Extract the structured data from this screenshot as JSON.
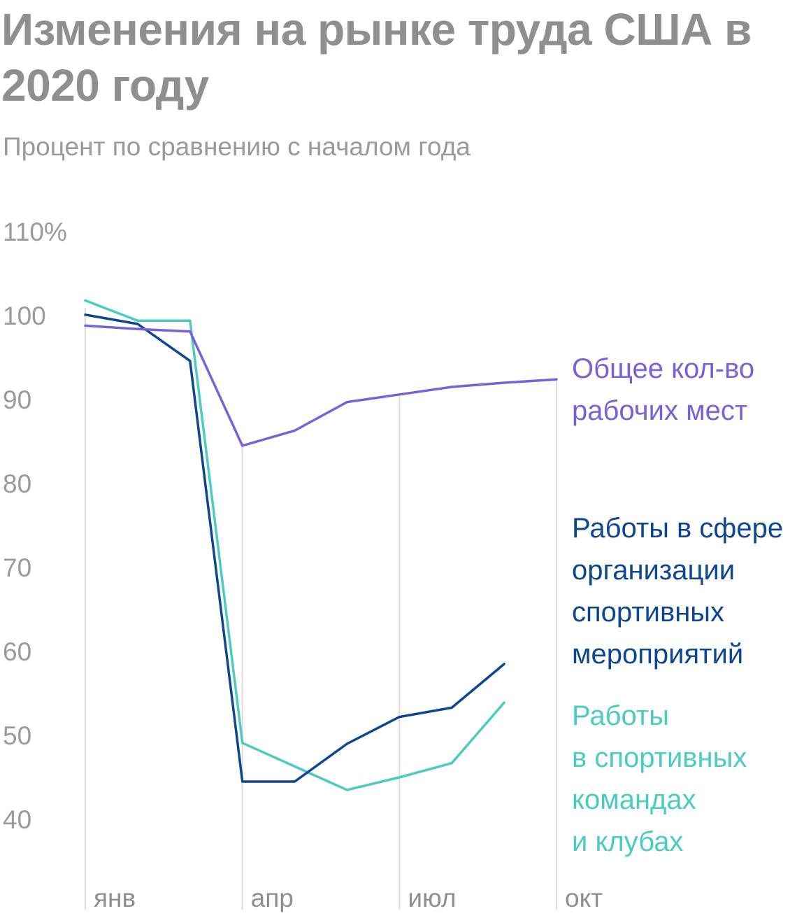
{
  "title": "Изменения на рынке труда США в 2020 году",
  "subtitle": "Процент по сравнению с началом года",
  "chart_data": {
    "type": "line",
    "title": "Изменения на рынке труда США в 2020 году",
    "subtitle": "Процент по сравнению с началом года",
    "xlabel": "",
    "ylabel": "",
    "x": [
      1,
      2,
      3,
      4,
      5,
      6,
      7,
      8,
      9,
      10
    ],
    "x_ticks": [
      {
        "x": 1,
        "label": "янв"
      },
      {
        "x": 4,
        "label": "апр"
      },
      {
        "x": 7,
        "label": "июл"
      },
      {
        "x": 10,
        "label": "окт"
      }
    ],
    "y_ticks": [
      {
        "y": 110,
        "label": "110%"
      },
      {
        "y": 100,
        "label": "100"
      },
      {
        "y": 90,
        "label": "90"
      },
      {
        "y": 80,
        "label": "80"
      },
      {
        "y": 70,
        "label": "70"
      },
      {
        "y": 60,
        "label": "60"
      },
      {
        "y": 50,
        "label": "50"
      },
      {
        "y": 40,
        "label": "40"
      }
    ],
    "ylim": [
      40,
      110
    ],
    "xlim": [
      1,
      10
    ],
    "grid": {
      "vertical": true,
      "horizontal": false
    },
    "legend_position": "right, next to line ends",
    "series": [
      {
        "name": "Общее кол-во рабочих мест",
        "label_lines": [
          "Общее кол-во",
          "рабочих мест"
        ],
        "color": "#7b61d9",
        "values": [
          98.8,
          98.4,
          98.1,
          84.5,
          86.3,
          89.7,
          90.6,
          91.5,
          92.0,
          92.4
        ]
      },
      {
        "name": "Работы в сфере организации спортивных мероприятий",
        "label_lines": [
          "Работы в сфере",
          "организации",
          "спортивных",
          "мероприятий"
        ],
        "color": "#0e4691",
        "values": [
          100.1,
          99.0,
          94.6,
          44.5,
          44.5,
          49.0,
          52.2,
          53.3,
          58.5,
          null
        ]
      },
      {
        "name": "Работы в спортивных командах и клубах",
        "label_lines": [
          "Работы",
          "в спортивных",
          "командах",
          "и клубах"
        ],
        "color": "#4cccc0",
        "values": [
          101.8,
          99.4,
          99.4,
          49.1,
          46.3,
          43.5,
          45.0,
          46.7,
          53.9,
          null
        ]
      }
    ]
  }
}
